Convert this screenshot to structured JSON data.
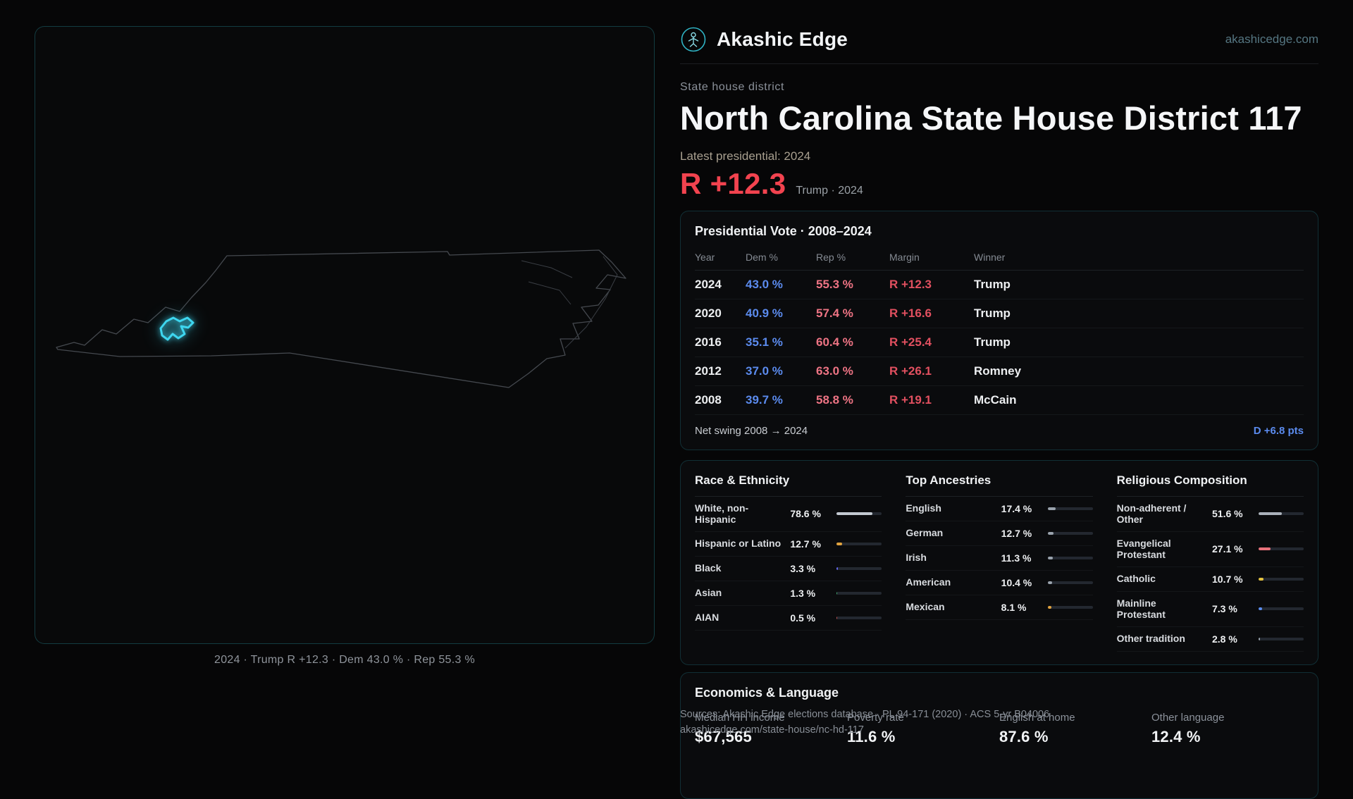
{
  "colors": {
    "accent_teal": "#2fb3c4",
    "district_highlight": "#3ed6ef",
    "rep_red": "#f2434f",
    "dem_blue": "#5b8bee"
  },
  "brand": {
    "name": "Akashic Edge",
    "domain": "akashicedge.com"
  },
  "hero": {
    "eyebrow": "State house district",
    "title": "North Carolina State House District 117",
    "latest_label": "Latest presidential: 2024",
    "margin_value": "R +12.3",
    "margin_context": "Trump · 2024"
  },
  "map": {
    "caption": "2024 · Trump R +12.3 · Dem 43.0 % · Rep 55.3 %"
  },
  "presidential": {
    "title": "Presidential Vote · 2008–2024",
    "columns": {
      "year": "Year",
      "dem": "Dem %",
      "rep": "Rep %",
      "margin": "Margin",
      "winner": "Winner"
    },
    "rows": [
      {
        "year": "2024",
        "dem": "43.0 %",
        "rep": "55.3 %",
        "margin": "R +12.3",
        "winner": "Trump"
      },
      {
        "year": "2020",
        "dem": "40.9 %",
        "rep": "57.4 %",
        "margin": "R +16.6",
        "winner": "Trump"
      },
      {
        "year": "2016",
        "dem": "35.1 %",
        "rep": "60.4 %",
        "margin": "R +25.4",
        "winner": "Trump"
      },
      {
        "year": "2012",
        "dem": "37.0 %",
        "rep": "63.0 %",
        "margin": "R +26.1",
        "winner": "Romney"
      },
      {
        "year": "2008",
        "dem": "39.7 %",
        "rep": "58.8 %",
        "margin": "R +19.1",
        "winner": "McCain"
      }
    ],
    "net_swing_label": "Net swing 2008 → 2024",
    "net_swing_value": "D +6.8 pts"
  },
  "demographics": {
    "race": {
      "title": "Race & Ethnicity",
      "rows": [
        {
          "label": "White, non-Hispanic",
          "value": "78.6 %",
          "pct": 78.6,
          "color": "#c3c9d1"
        },
        {
          "label": "Hispanic or Latino",
          "value": "12.7 %",
          "pct": 12.7,
          "color": "#e2a33e"
        },
        {
          "label": "Black",
          "value": "3.3 %",
          "pct": 3.3,
          "color": "#6468f2"
        },
        {
          "label": "Asian",
          "value": "1.3 %",
          "pct": 1.3,
          "color": "#3fa66b"
        },
        {
          "label": "AIAN",
          "value": "0.5 %",
          "pct": 0.5,
          "color": "#c05050"
        }
      ]
    },
    "ancestries": {
      "title": "Top Ancestries",
      "rows": [
        {
          "label": "English",
          "value": "17.4 %",
          "pct": 17.4,
          "color": "#9aa3ad"
        },
        {
          "label": "German",
          "value": "12.7 %",
          "pct": 12.7,
          "color": "#9aa3ad"
        },
        {
          "label": "Irish",
          "value": "11.3 %",
          "pct": 11.3,
          "color": "#9aa3ad"
        },
        {
          "label": "American",
          "value": "10.4 %",
          "pct": 10.4,
          "color": "#9aa3ad"
        },
        {
          "label": "Mexican",
          "value": "8.1 %",
          "pct": 8.1,
          "color": "#e2a33e"
        }
      ]
    },
    "religion": {
      "title": "Religious Composition",
      "rows": [
        {
          "label": "Non-adherent / Other",
          "value": "51.6 %",
          "pct": 51.6,
          "color": "#aab1ba"
        },
        {
          "label": "Evangelical Protestant",
          "value": "27.1 %",
          "pct": 27.1,
          "color": "#e8727b"
        },
        {
          "label": "Catholic",
          "value": "10.7 %",
          "pct": 10.7,
          "color": "#e3c23f"
        },
        {
          "label": "Mainline Protestant",
          "value": "7.3 %",
          "pct": 7.3,
          "color": "#5b8def"
        },
        {
          "label": "Other tradition",
          "value": "2.8 %",
          "pct": 2.8,
          "color": "#9aa3ad"
        }
      ]
    }
  },
  "economics": {
    "title": "Economics & Language",
    "stats": [
      {
        "label": "Median HH income",
        "value": "$67,565"
      },
      {
        "label": "Poverty rate",
        "value": "11.6 %"
      },
      {
        "label": "English at home",
        "value": "87.6 %"
      },
      {
        "label": "Other language",
        "value": "12.4 %"
      }
    ]
  },
  "footer": {
    "line1": "Sources: Akashic Edge elections database · PL 94-171 (2020) · ACS 5-yr B04006",
    "line2": "akashicedge.com/state-house/nc-hd-117"
  },
  "chart_data": [
    {
      "type": "table",
      "title": "Presidential Vote · 2008–2024",
      "columns": [
        "Year",
        "Dem %",
        "Rep %",
        "Margin",
        "Winner"
      ],
      "rows": [
        [
          "2024",
          43.0,
          55.3,
          "R +12.3",
          "Trump"
        ],
        [
          "2020",
          40.9,
          57.4,
          "R +16.6",
          "Trump"
        ],
        [
          "2016",
          35.1,
          60.4,
          "R +25.4",
          "Trump"
        ],
        [
          "2012",
          37.0,
          63.0,
          "R +26.1",
          "Romney"
        ],
        [
          "2008",
          39.7,
          58.8,
          "R +19.1",
          "McCain"
        ]
      ],
      "footer": {
        "label": "Net swing 2008 → 2024",
        "value": "D +6.8 pts"
      }
    },
    {
      "type": "bar",
      "title": "Race & Ethnicity",
      "categories": [
        "White, non-Hispanic",
        "Hispanic or Latino",
        "Black",
        "Asian",
        "AIAN"
      ],
      "values": [
        78.6,
        12.7,
        3.3,
        1.3,
        0.5
      ],
      "unit": "%",
      "xlim": [
        0,
        100
      ],
      "orientation": "horizontal"
    },
    {
      "type": "bar",
      "title": "Top Ancestries",
      "categories": [
        "English",
        "German",
        "Irish",
        "American",
        "Mexican"
      ],
      "values": [
        17.4,
        12.7,
        11.3,
        10.4,
        8.1
      ],
      "unit": "%",
      "xlim": [
        0,
        100
      ],
      "orientation": "horizontal"
    },
    {
      "type": "bar",
      "title": "Religious Composition",
      "categories": [
        "Non-adherent / Other",
        "Evangelical Protestant",
        "Catholic",
        "Mainline Protestant",
        "Other tradition"
      ],
      "values": [
        51.6,
        27.1,
        10.7,
        7.3,
        2.8
      ],
      "unit": "%",
      "xlim": [
        0,
        100
      ],
      "orientation": "horizontal"
    },
    {
      "type": "table",
      "title": "Economics & Language",
      "columns": [
        "Median HH income",
        "Poverty rate",
        "English at home",
        "Other language"
      ],
      "rows": [
        [
          "$67,565",
          "11.6 %",
          "87.6 %",
          "12.4 %"
        ]
      ]
    }
  ]
}
